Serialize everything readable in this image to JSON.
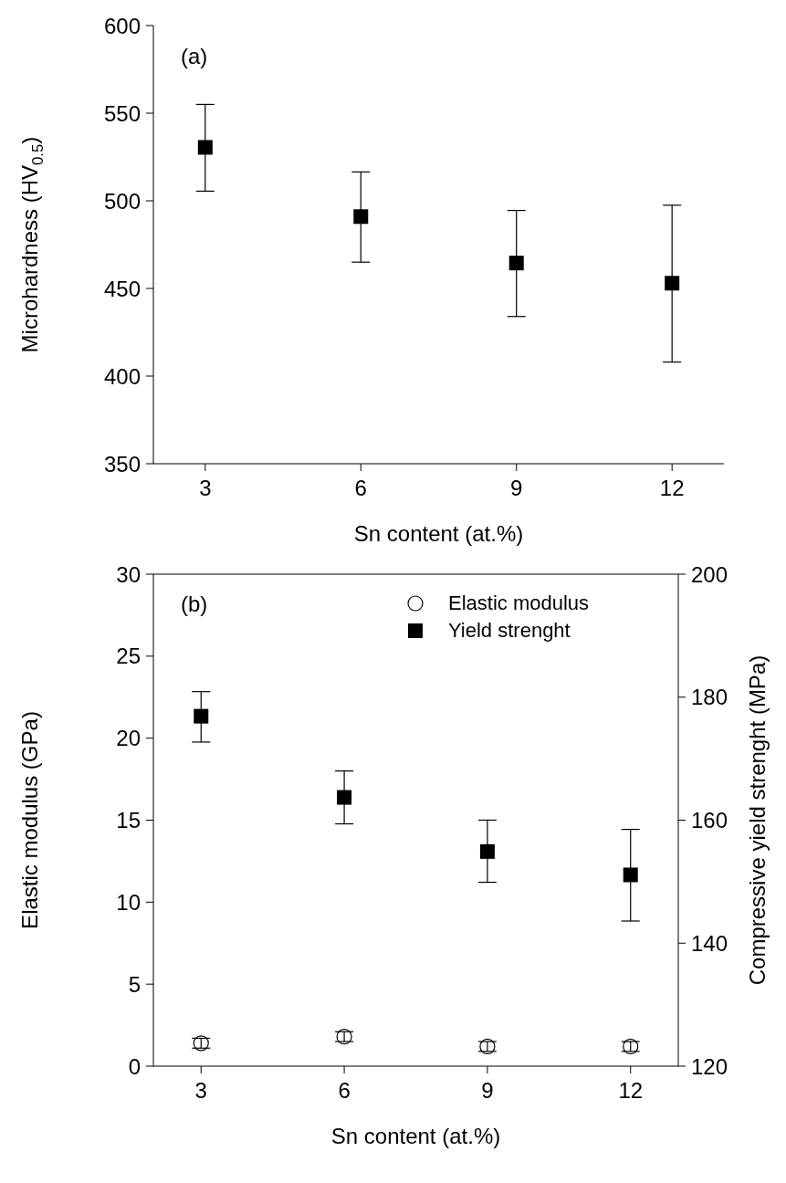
{
  "chart_data": [
    {
      "type": "scatter",
      "xlabel": "Sn content (at.%)",
      "ylabel": "Microhardness (HV$_{0.5}$)",
      "annotations": [
        "(a)"
      ],
      "x": [
        3,
        6,
        9,
        12
      ],
      "values": [
        530.5,
        491,
        464.5,
        453
      ],
      "errors": [
        [
          505.5,
          555
        ],
        [
          465,
          516.5
        ],
        [
          434,
          494.5
        ],
        [
          408,
          497.5
        ]
      ],
      "color": "#000000",
      "marker": "square",
      "xlim": [
        2,
        13
      ],
      "xticks": [
        3,
        6,
        9,
        12
      ],
      "ylim": [
        350,
        600
      ],
      "yticks": [
        350,
        400,
        450,
        500,
        550,
        600
      ],
      "grid": false,
      "legend": false
    },
    {
      "type": "scatter",
      "xlabel": "Sn content (at.%)",
      "ylabel": "Elastic modulus (GPa)",
      "y2label": "Compressive yield strenght (MPa)",
      "annotations": [
        "(b)"
      ],
      "x": [
        3,
        6,
        9,
        12
      ],
      "series": [
        {
          "name": "Elastic modulus",
          "color": "#000000",
          "marker": "circle",
          "values": [
            1.4,
            1.8,
            1.2,
            1.2
          ],
          "errors": [
            0.3,
            0.3,
            0.3,
            0.3
          ]
        },
        {
          "name": "Yield strenght",
          "color": "#000000",
          "marker": "square",
          "axis": "y2",
          "values": [
            176.9,
            163.7,
            154.9,
            151.1
          ],
          "errors": [
            [
              172.7,
              180.9
            ],
            [
              159.4,
              168
            ],
            [
              149.9,
              160
            ],
            [
              143.6,
              158.5
            ]
          ]
        }
      ],
      "xlim": [
        2,
        13
      ],
      "xticks": [
        3,
        6,
        9,
        12
      ],
      "ylim": [
        0,
        30
      ],
      "yticks": [
        0,
        5,
        10,
        15,
        20,
        25,
        30
      ],
      "y2lim": [
        120,
        200
      ],
      "y2ticks": [
        120,
        140,
        160,
        180,
        200
      ],
      "grid": false,
      "legend": "top right"
    }
  ]
}
